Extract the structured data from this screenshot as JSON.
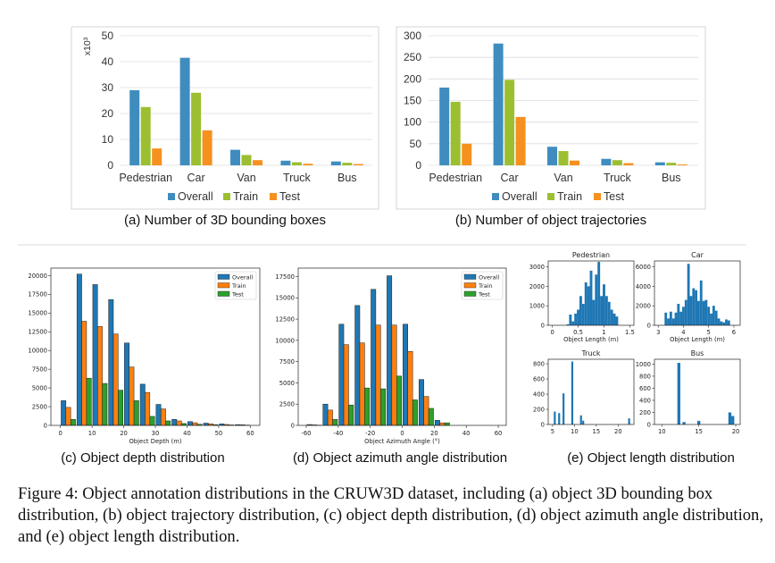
{
  "colors": {
    "abOverall": "#3f8dbf",
    "abTrain": "#9cbf31",
    "abTest": "#f6901e",
    "cdOverall": "#1f77b4",
    "cdTrain": "#ff7f0e",
    "cdTest": "#2ca02c",
    "grid": "#dcdcdc",
    "frame": "#cccccc"
  },
  "panels": {
    "a": {
      "caption": "(a) Number of 3D bounding boxes"
    },
    "b": {
      "caption": "(b) Number of object trajectories"
    },
    "c": {
      "caption": "(c) Object depth distribution"
    },
    "d": {
      "caption": "(d) Object azimuth angle distribution"
    },
    "e": {
      "caption": "(e) Object length distribution"
    }
  },
  "figure_caption": "Figure 4: Object annotation distributions in the CRUW3D dataset, including (a) object 3D bounding box distribution, (b) object trajectory distribution, (c) object depth distribution, (d) object azimuth angle distribution, and (e) object length distribution.",
  "chart_data": [
    {
      "id": "a",
      "type": "bar",
      "title": "",
      "xlabel": "",
      "ylabel": "",
      "multiplier_label": "x10³",
      "categories": [
        "Pedestrian",
        "Car",
        "Van",
        "Truck",
        "Bus"
      ],
      "yticks": [
        0,
        10,
        20,
        30,
        40,
        50
      ],
      "ylim": [
        0,
        50
      ],
      "series": [
        {
          "name": "Overall",
          "values": [
            29,
            41.5,
            6,
            1.8,
            1.5
          ]
        },
        {
          "name": "Train",
          "values": [
            22.5,
            28,
            4,
            1.2,
            1
          ]
        },
        {
          "name": "Test",
          "values": [
            6.5,
            13.5,
            2,
            0.6,
            0.5
          ]
        }
      ],
      "legend": [
        "Overall",
        "Train",
        "Test"
      ],
      "legend_position": "bottom",
      "grid": true
    },
    {
      "id": "b",
      "type": "bar",
      "title": "",
      "xlabel": "",
      "ylabel": "",
      "categories": [
        "Pedestrian",
        "Car",
        "Van",
        "Truck",
        "Bus"
      ],
      "yticks": [
        0,
        50,
        100,
        150,
        200,
        250,
        300
      ],
      "ylim": [
        0,
        300
      ],
      "series": [
        {
          "name": "Overall",
          "values": [
            180,
            282,
            43,
            15,
            7
          ]
        },
        {
          "name": "Train",
          "values": [
            147,
            198,
            33,
            12,
            6
          ]
        },
        {
          "name": "Test",
          "values": [
            50,
            112,
            11,
            5,
            2
          ]
        }
      ],
      "legend": [
        "Overall",
        "Train",
        "Test"
      ],
      "legend_position": "bottom",
      "grid": true
    },
    {
      "id": "c",
      "type": "bar",
      "title": "",
      "xlabel": "Object Depth (m)",
      "ylabel": "",
      "x": [
        2.5,
        7.5,
        12.5,
        17.5,
        22.5,
        27.5,
        32.5,
        37.5,
        42.5,
        47.5,
        52.5,
        57.5
      ],
      "xlim": [
        -3,
        63
      ],
      "xticks": [
        0,
        10,
        20,
        30,
        40,
        50,
        60
      ],
      "ylim": [
        0,
        21000
      ],
      "yticks": [
        0,
        2500,
        5000,
        7500,
        10000,
        12500,
        15000,
        17500,
        20000
      ],
      "series": [
        {
          "name": "Overall",
          "values": [
            3300,
            20200,
            18800,
            16800,
            11000,
            5500,
            2800,
            800,
            500,
            300,
            200,
            100
          ]
        },
        {
          "name": "Train",
          "values": [
            2400,
            13900,
            13200,
            12200,
            7800,
            4400,
            2200,
            600,
            350,
            200,
            120,
            80
          ]
        },
        {
          "name": "Test",
          "values": [
            800,
            6300,
            5600,
            4700,
            3300,
            1200,
            600,
            250,
            150,
            100,
            60,
            40
          ]
        }
      ],
      "legend": [
        "Overall",
        "Train",
        "Test"
      ],
      "legend_position": "top-right",
      "grid": false
    },
    {
      "id": "d",
      "type": "bar",
      "title": "",
      "xlabel": "Object Azimuth Angle (°)",
      "ylabel": "",
      "x": [
        -55,
        -45,
        -35,
        -25,
        -15,
        -5,
        5,
        15,
        25,
        35,
        45
      ],
      "xlim": [
        -65,
        65
      ],
      "xticks": [
        -60,
        -40,
        -20,
        0,
        20,
        40,
        60
      ],
      "ylim": [
        0,
        18500
      ],
      "yticks": [
        0,
        2500,
        5000,
        7500,
        10000,
        12500,
        15000,
        17500
      ],
      "series": [
        {
          "name": "Overall",
          "values": [
            100,
            2500,
            11900,
            14100,
            16000,
            17600,
            11900,
            5400,
            600,
            0,
            0
          ]
        },
        {
          "name": "Train",
          "values": [
            60,
            1800,
            9500,
            9700,
            11800,
            11800,
            8700,
            3400,
            300,
            0,
            0
          ]
        },
        {
          "name": "Test",
          "values": [
            30,
            700,
            2400,
            4400,
            4300,
            5800,
            3000,
            2000,
            300,
            0,
            0
          ]
        }
      ],
      "legend": [
        "Overall",
        "Train",
        "Test"
      ],
      "legend_position": "top-right",
      "grid": false
    },
    {
      "id": "e1",
      "type": "bar",
      "title": "Pedestrian",
      "xlabel": "Object Length (m)",
      "x": [
        0.1,
        0.15,
        0.2,
        0.25,
        0.3,
        0.35,
        0.4,
        0.45,
        0.5,
        0.55,
        0.6,
        0.65,
        0.7,
        0.75,
        0.8,
        0.85,
        0.9,
        0.95,
        1.0,
        1.05,
        1.1,
        1.15,
        1.2,
        1.25,
        1.3,
        1.35
      ],
      "bin_width": 0.05,
      "xlim": [
        -0.08,
        1.58
      ],
      "xticks": [
        0.0,
        0.5,
        1.0,
        1.5
      ],
      "ylim": [
        0,
        3300
      ],
      "yticks": [
        0,
        1000,
        2000,
        3000
      ],
      "values": [
        0,
        0,
        0,
        0,
        50,
        550,
        200,
        600,
        800,
        1500,
        1100,
        2200,
        2000,
        2800,
        1300,
        2600,
        3250,
        1500,
        2100,
        1500,
        1200,
        800,
        600,
        450,
        0,
        0
      ]
    },
    {
      "id": "e2",
      "type": "bar",
      "title": "Car",
      "xlabel": "Object Length (m)",
      "x": [
        3.3,
        3.4,
        3.5,
        3.6,
        3.7,
        3.8,
        3.9,
        4.0,
        4.1,
        4.2,
        4.3,
        4.4,
        4.5,
        4.6,
        4.7,
        4.8,
        4.9,
        5.0,
        5.1,
        5.2,
        5.3,
        5.4,
        5.5,
        5.6,
        5.7,
        5.8
      ],
      "bin_width": 0.1,
      "xlim": [
        2.85,
        6.25
      ],
      "xticks": [
        3,
        4,
        5,
        6
      ],
      "ylim": [
        0,
        6600
      ],
      "yticks": [
        0,
        2000,
        4000,
        6000
      ],
      "values": [
        1300,
        700,
        1400,
        700,
        1300,
        2200,
        1400,
        1900,
        2600,
        6300,
        3000,
        3800,
        3600,
        2500,
        4600,
        2500,
        2600,
        1900,
        1200,
        2000,
        1500,
        700,
        400,
        300,
        600,
        500
      ]
    },
    {
      "id": "e3",
      "type": "bar",
      "title": "Truck",
      "xlabel": "",
      "x": [
        5.5,
        6.5,
        7.5,
        9.5,
        11.5,
        12.0,
        22.5
      ],
      "bin_width": 0.45,
      "xlim": [
        4.0,
        23.6
      ],
      "xticks": [
        5,
        10,
        15,
        20
      ],
      "ylim": [
        0,
        860
      ],
      "yticks": [
        0,
        200,
        400,
        600,
        800
      ],
      "values": [
        170,
        150,
        410,
        830,
        120,
        50,
        80
      ]
    },
    {
      "id": "e4",
      "type": "bar",
      "title": "Bus",
      "xlabel": "",
      "x": [
        12.3,
        13.0,
        15.0,
        19.2,
        19.6
      ],
      "bin_width": 0.4,
      "xlim": [
        9.0,
        20.6
      ],
      "xticks": [
        10,
        15,
        20
      ],
      "ylim": [
        0,
        1080
      ],
      "yticks": [
        0,
        200,
        400,
        600,
        800,
        1000
      ],
      "values": [
        1020,
        40,
        60,
        200,
        140
      ]
    }
  ]
}
